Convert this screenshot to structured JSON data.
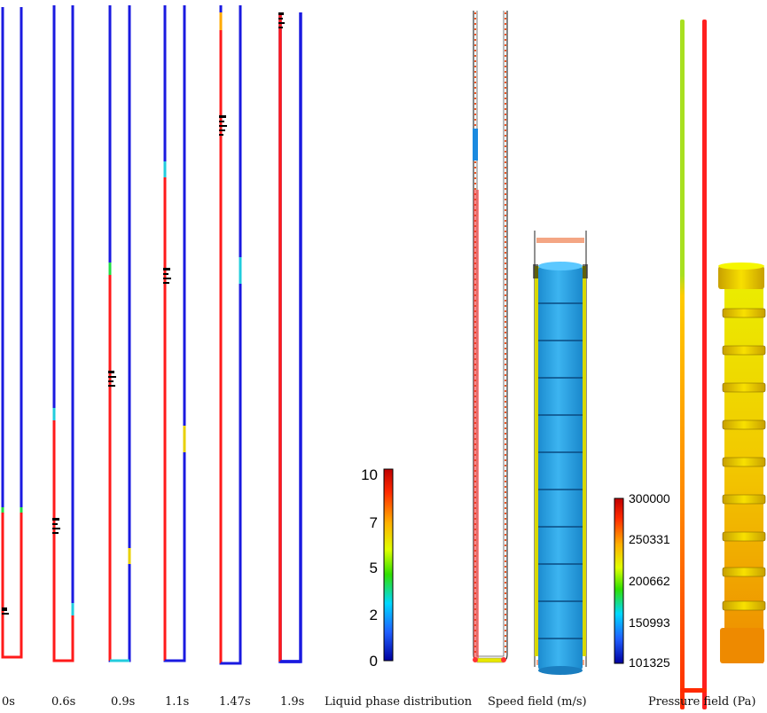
{
  "time_labels": [
    "0s",
    "0.6s",
    "0.9s",
    "1.1s",
    "1.47s",
    "1.9s"
  ],
  "panel_labels": {
    "liquid": "Liquid phase distribution",
    "speed": "Speed field (m/s)",
    "pressure": "Pressure field (Pa)"
  },
  "liquid_scale": {
    "ticks": [
      "10",
      "7",
      "5",
      "2",
      "0"
    ]
  },
  "pressure_scale": {
    "ticks": [
      "300000",
      "250331",
      "200662",
      "150993",
      "101325"
    ]
  },
  "colors": {
    "liquid": "#ff1a1a",
    "gas": "#1a1ae0",
    "pipe_yellow": "#e8e800",
    "cylinder_blue": "#2aa8e8"
  }
}
